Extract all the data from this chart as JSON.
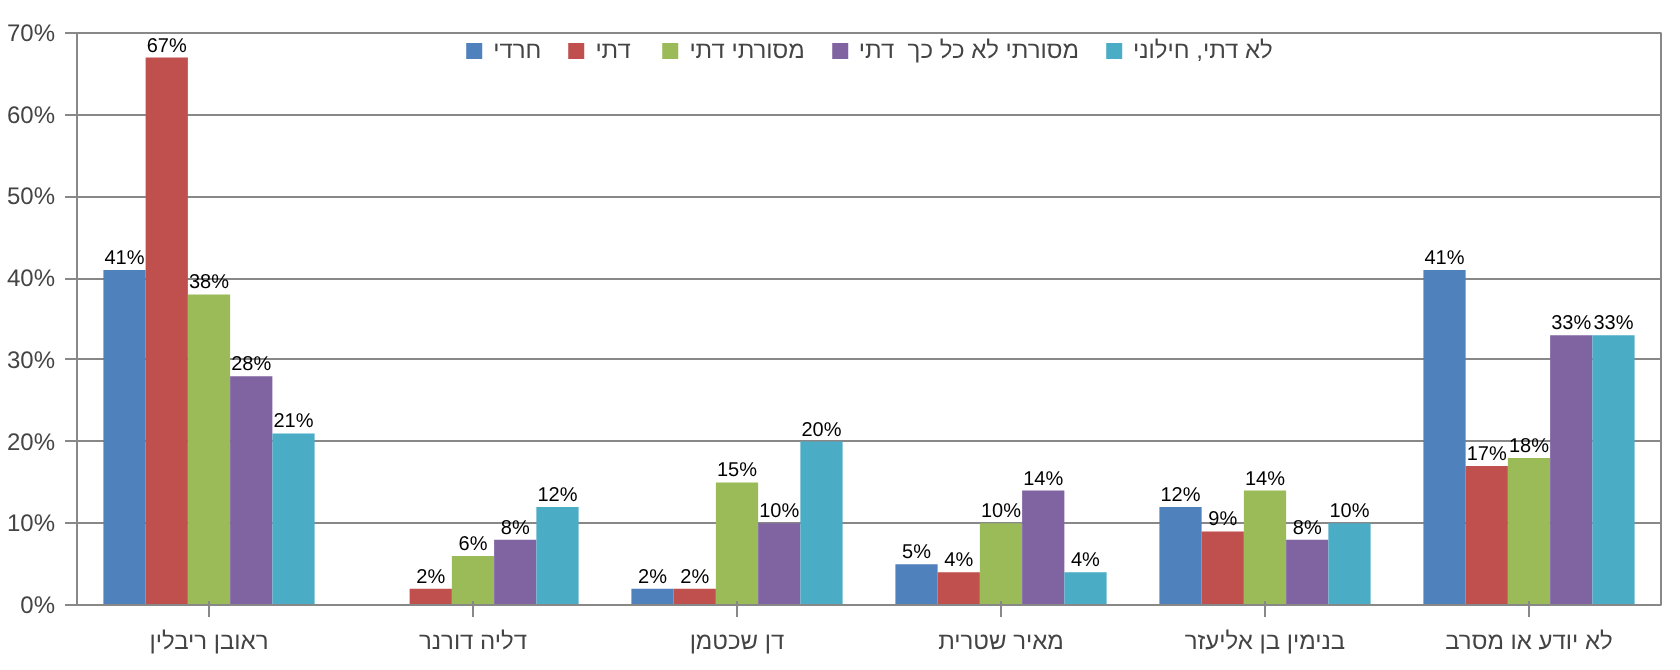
{
  "chart_data": {
    "type": "bar",
    "categories": [
      "ראובן ריבלין",
      "דליה דורנר",
      "דן שכטמן",
      "מאיר שטרית",
      "בנימין בן אליעזר",
      "לא יודע או מסרב"
    ],
    "series": [
      {
        "name": "חרדי",
        "color": "#4f81bd",
        "values": [
          41,
          null,
          2,
          5,
          12,
          41
        ],
        "value_labels": [
          "41%",
          null,
          "2%",
          "5%",
          "12%",
          "41%"
        ]
      },
      {
        "name": "דתי",
        "color": "#c0504d",
        "values": [
          67,
          2,
          2,
          4,
          9,
          17
        ],
        "value_labels": [
          "67%",
          "2%",
          "2%",
          "4%",
          "9%",
          "17%"
        ]
      },
      {
        "name": "מסורתי דתי",
        "color": "#9bbb59",
        "values": [
          38,
          6,
          15,
          10,
          14,
          18
        ],
        "value_labels": [
          "38%",
          "6%",
          "15%",
          "10%",
          "14%",
          "18%"
        ]
      },
      {
        "name": "מסורתי לא כל כך  דתי",
        "color": "#8064a2",
        "values": [
          28,
          8,
          10,
          14,
          8,
          33
        ],
        "value_labels": [
          "28%",
          "8%",
          "10%",
          "14%",
          "8%",
          "33%"
        ]
      },
      {
        "name": "לא דתי, חילוני",
        "color": "#4bacc6",
        "values": [
          21,
          12,
          20,
          4,
          10,
          33
        ],
        "value_labels": [
          "21%",
          "12%",
          "20%",
          "4%",
          "10%",
          "33%"
        ]
      }
    ],
    "ylim": [
      0,
      70
    ],
    "yticks": [
      {
        "value": 0,
        "label": "0%"
      },
      {
        "value": 10,
        "label": "10%"
      },
      {
        "value": 20,
        "label": "20%"
      },
      {
        "value": 30,
        "label": "30%"
      },
      {
        "value": 40,
        "label": "40%"
      },
      {
        "value": 50,
        "label": "50%"
      },
      {
        "value": 60,
        "label": "60%"
      },
      {
        "value": 70,
        "label": "70%"
      }
    ],
    "grid": "y",
    "legend": "top"
  }
}
